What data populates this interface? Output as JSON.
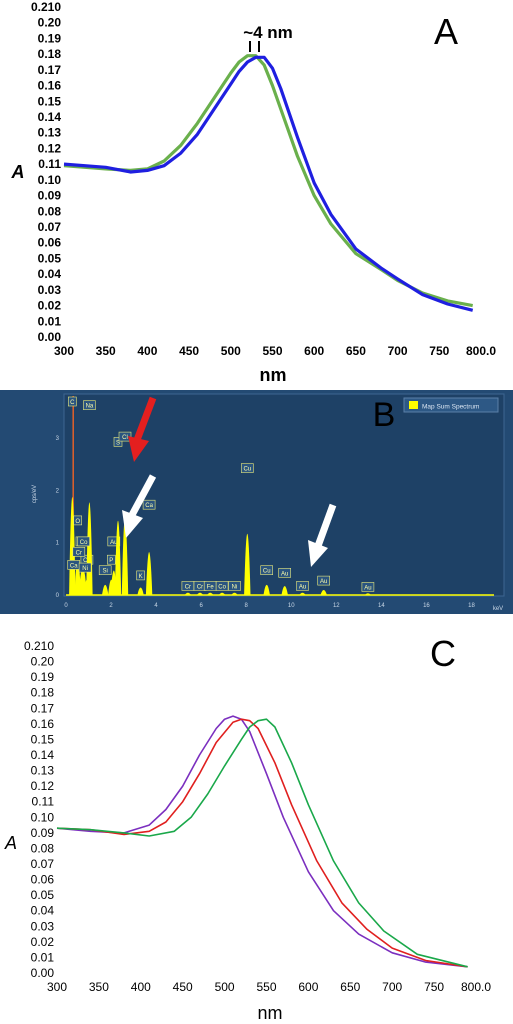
{
  "chart_data": [
    {
      "panel": "A",
      "type": "line",
      "xlabel": "nm",
      "ylabel": "A",
      "xlim": [
        300,
        800
      ],
      "ylim": [
        0,
        0.21
      ],
      "xticks": [
        "300",
        "350",
        "400",
        "450",
        "500",
        "550",
        "600",
        "650",
        "700",
        "750",
        "800.0"
      ],
      "yticks": [
        "0.00",
        "0.01",
        "0.02",
        "0.03",
        "0.04",
        "0.05",
        "0.06",
        "0.07",
        "0.08",
        "0.09",
        "0.10",
        "0.11",
        "0.12",
        "0.13",
        "0.14",
        "0.15",
        "0.16",
        "0.17",
        "0.18",
        "0.19",
        "0.20",
        "0.210"
      ],
      "annotation": "~4 nm",
      "series": [
        {
          "color": "#6ab04c",
          "x": [
            300,
            350,
            380,
            400,
            420,
            440,
            460,
            480,
            500,
            510,
            520,
            530,
            540,
            550,
            560,
            580,
            600,
            620,
            650,
            680,
            700,
            730,
            760,
            790
          ],
          "y": [
            0.109,
            0.107,
            0.106,
            0.107,
            0.112,
            0.122,
            0.136,
            0.152,
            0.168,
            0.175,
            0.179,
            0.179,
            0.173,
            0.16,
            0.145,
            0.115,
            0.09,
            0.072,
            0.053,
            0.043,
            0.036,
            0.028,
            0.023,
            0.02
          ]
        },
        {
          "color": "#1f1fe0",
          "x": [
            300,
            350,
            380,
            400,
            420,
            440,
            460,
            480,
            500,
            510,
            520,
            530,
            540,
            550,
            560,
            580,
            600,
            620,
            650,
            680,
            700,
            730,
            760,
            790
          ],
          "y": [
            0.11,
            0.108,
            0.105,
            0.106,
            0.109,
            0.117,
            0.129,
            0.145,
            0.161,
            0.169,
            0.175,
            0.178,
            0.178,
            0.171,
            0.158,
            0.127,
            0.098,
            0.078,
            0.056,
            0.044,
            0.037,
            0.027,
            0.021,
            0.017
          ]
        }
      ]
    },
    {
      "panel": "B",
      "type": "bar",
      "xlabel": "keV",
      "ylabel": "cps/eV",
      "xlim": [
        0,
        19
      ],
      "ylim": [
        0,
        3.8
      ],
      "xticks": [
        "0",
        "2",
        "4",
        "6",
        "8",
        "10",
        "12",
        "14",
        "16",
        "18"
      ],
      "yticks": [
        "0",
        "1",
        "2",
        "3"
      ],
      "legend": "Map Sum Spectrum",
      "peaks": [
        {
          "label": "C",
          "x": 0.28,
          "y": 3.7
        },
        {
          "label": "O",
          "x": 0.52,
          "y": 1.3
        },
        {
          "label": "Ca",
          "x": 0.34,
          "y": 0.45
        },
        {
          "label": "Cu",
          "x": 0.93,
          "y": 0.55
        },
        {
          "label": "Na",
          "x": 1.04,
          "y": 3.5
        },
        {
          "label": "Fe",
          "x": 0.71,
          "y": 0.9
        },
        {
          "label": "Cr",
          "x": 0.57,
          "y": 0.7
        },
        {
          "label": "Co",
          "x": 0.78,
          "y": 0.9
        },
        {
          "label": "Ni",
          "x": 0.85,
          "y": 0.4
        },
        {
          "label": "Si",
          "x": 1.74,
          "y": 0.35
        },
        {
          "label": "Au",
          "x": 2.12,
          "y": 0.9
        },
        {
          "label": "P",
          "x": 2.01,
          "y": 0.55
        },
        {
          "label": "S",
          "x": 2.31,
          "y": 2.8
        },
        {
          "label": "Cl",
          "x": 2.62,
          "y": 2.9
        },
        {
          "label": "K",
          "x": 3.31,
          "y": 0.25
        },
        {
          "label": "Ca",
          "x": 3.69,
          "y": 1.6
        },
        {
          "label": "Cr",
          "x": 5.41,
          "y": 0.05
        },
        {
          "label": "Cr",
          "x": 5.95,
          "y": 0.05
        },
        {
          "label": "Fe",
          "x": 6.4,
          "y": 0.05
        },
        {
          "label": "Co",
          "x": 6.93,
          "y": 0.05
        },
        {
          "label": "Ni",
          "x": 7.48,
          "y": 0.05
        },
        {
          "label": "Cu",
          "x": 8.05,
          "y": 2.3
        },
        {
          "label": "Cu",
          "x": 8.91,
          "y": 0.35
        },
        {
          "label": "Au",
          "x": 9.71,
          "y": 0.3
        },
        {
          "label": "Au",
          "x": 10.5,
          "y": 0.05
        },
        {
          "label": "Au",
          "x": 11.44,
          "y": 0.15
        },
        {
          "label": "Au",
          "x": 13.4,
          "y": 0.03
        }
      ]
    },
    {
      "panel": "C",
      "type": "line",
      "xlabel": "nm",
      "ylabel": "A",
      "xlim": [
        300,
        800
      ],
      "ylim": [
        0,
        0.21
      ],
      "xticks": [
        "300",
        "350",
        "400",
        "450",
        "500",
        "550",
        "600",
        "650",
        "700",
        "750",
        "800.0"
      ],
      "yticks": [
        "0.00",
        "0.01",
        "0.02",
        "0.03",
        "0.04",
        "0.05",
        "0.06",
        "0.07",
        "0.08",
        "0.09",
        "0.10",
        "0.11",
        "0.12",
        "0.13",
        "0.14",
        "0.15",
        "0.16",
        "0.17",
        "0.18",
        "0.19",
        "0.20",
        "0.210"
      ],
      "series": [
        {
          "color": "#7b2fbf",
          "x": [
            300,
            340,
            380,
            410,
            430,
            450,
            470,
            490,
            500,
            510,
            520,
            530,
            550,
            570,
            600,
            630,
            660,
            700,
            740,
            790
          ],
          "y": [
            0.093,
            0.091,
            0.09,
            0.095,
            0.105,
            0.12,
            0.14,
            0.157,
            0.163,
            0.165,
            0.163,
            0.155,
            0.128,
            0.1,
            0.065,
            0.04,
            0.025,
            0.013,
            0.007,
            0.004
          ]
        },
        {
          "color": "#e0201f",
          "x": [
            300,
            340,
            380,
            410,
            430,
            450,
            470,
            490,
            510,
            520,
            530,
            540,
            560,
            580,
            610,
            640,
            670,
            700,
            740,
            790
          ],
          "y": [
            0.093,
            0.092,
            0.089,
            0.091,
            0.097,
            0.11,
            0.128,
            0.148,
            0.161,
            0.163,
            0.162,
            0.157,
            0.135,
            0.108,
            0.072,
            0.045,
            0.028,
            0.016,
            0.008,
            0.004
          ]
        },
        {
          "color": "#1aa84a",
          "x": [
            300,
            340,
            380,
            410,
            440,
            460,
            480,
            500,
            520,
            530,
            540,
            550,
            560,
            580,
            600,
            630,
            660,
            690,
            730,
            790
          ],
          "y": [
            0.093,
            0.092,
            0.09,
            0.088,
            0.091,
            0.1,
            0.115,
            0.133,
            0.15,
            0.158,
            0.162,
            0.163,
            0.158,
            0.135,
            0.108,
            0.072,
            0.045,
            0.027,
            0.012,
            0.004
          ]
        }
      ]
    }
  ],
  "panel_labels": [
    "A",
    "B",
    "C"
  ]
}
